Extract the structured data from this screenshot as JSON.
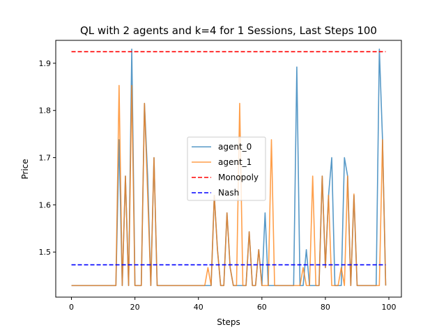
{
  "chart_data": {
    "type": "line",
    "title": "QL with 2 agents and k=4 for 1 Sessions, Last Steps 100",
    "xlabel": "Steps",
    "ylabel": "Price",
    "xlim": [
      -4.95,
      103.95
    ],
    "ylim": [
      1.4045,
      1.9485
    ],
    "xticks": [
      0,
      20,
      40,
      60,
      80,
      100
    ],
    "yticks": [
      1.5,
      1.6,
      1.7,
      1.8,
      1.9
    ],
    "ytick_labels": [
      "1.5",
      "1.6",
      "1.7",
      "1.8",
      "1.9"
    ],
    "grid": false,
    "legend_position": "center",
    "series": [
      {
        "name": "agent_0",
        "color": "#1f77b4",
        "style": "solid",
        "x": [
          0,
          1,
          2,
          3,
          4,
          5,
          6,
          7,
          8,
          9,
          10,
          11,
          12,
          13,
          14,
          15,
          16,
          17,
          18,
          19,
          20,
          21,
          22,
          23,
          24,
          25,
          26,
          27,
          28,
          29,
          30,
          31,
          32,
          33,
          34,
          35,
          36,
          37,
          38,
          39,
          40,
          41,
          42,
          43,
          44,
          45,
          46,
          47,
          48,
          49,
          50,
          51,
          52,
          53,
          54,
          55,
          56,
          57,
          58,
          59,
          60,
          61,
          62,
          63,
          64,
          65,
          66,
          67,
          68,
          69,
          70,
          71,
          72,
          73,
          74,
          75,
          76,
          77,
          78,
          79,
          80,
          81,
          82,
          83,
          84,
          85,
          86,
          87,
          88,
          89,
          90,
          91,
          92,
          93,
          94,
          95,
          96,
          97,
          98,
          99
        ],
        "values": [
          1.429,
          1.429,
          1.429,
          1.429,
          1.429,
          1.429,
          1.429,
          1.429,
          1.429,
          1.429,
          1.429,
          1.429,
          1.429,
          1.429,
          1.429,
          1.738,
          1.429,
          1.661,
          1.429,
          1.93,
          1.429,
          1.429,
          1.429,
          1.815,
          1.661,
          1.429,
          1.7,
          1.429,
          1.429,
          1.429,
          1.429,
          1.429,
          1.429,
          1.429,
          1.429,
          1.429,
          1.429,
          1.429,
          1.429,
          1.429,
          1.429,
          1.429,
          1.429,
          1.429,
          1.429,
          1.62,
          1.505,
          1.429,
          1.429,
          1.583,
          1.467,
          1.429,
          1.429,
          1.429,
          1.429,
          1.429,
          1.543,
          1.429,
          1.429,
          1.505,
          1.429,
          1.583,
          1.429,
          1.429,
          1.429,
          1.429,
          1.429,
          1.429,
          1.429,
          1.429,
          1.429,
          1.892,
          1.429,
          1.429,
          1.505,
          1.429,
          1.429,
          1.429,
          1.429,
          1.661,
          1.467,
          1.62,
          1.7,
          1.429,
          1.429,
          1.429,
          1.7,
          1.661,
          1.429,
          1.62,
          1.429,
          1.429,
          1.429,
          1.429,
          1.429,
          1.429,
          1.429,
          1.93,
          1.738,
          1.429
        ]
      },
      {
        "name": "agent_1",
        "color": "#ff7f0e",
        "style": "solid",
        "x": [
          0,
          1,
          2,
          3,
          4,
          5,
          6,
          7,
          8,
          9,
          10,
          11,
          12,
          13,
          14,
          15,
          16,
          17,
          18,
          19,
          20,
          21,
          22,
          23,
          24,
          25,
          26,
          27,
          28,
          29,
          30,
          31,
          32,
          33,
          34,
          35,
          36,
          37,
          38,
          39,
          40,
          41,
          42,
          43,
          44,
          45,
          46,
          47,
          48,
          49,
          50,
          51,
          52,
          53,
          54,
          55,
          56,
          57,
          58,
          59,
          60,
          61,
          62,
          63,
          64,
          65,
          66,
          67,
          68,
          69,
          70,
          71,
          72,
          73,
          74,
          75,
          76,
          77,
          78,
          79,
          80,
          81,
          82,
          83,
          84,
          85,
          86,
          87,
          88,
          89,
          90,
          91,
          92,
          93,
          94,
          95,
          96,
          97,
          98,
          99
        ],
        "values": [
          1.429,
          1.429,
          1.429,
          1.429,
          1.429,
          1.429,
          1.429,
          1.429,
          1.429,
          1.429,
          1.429,
          1.429,
          1.429,
          1.429,
          1.429,
          1.853,
          1.429,
          1.661,
          1.429,
          1.853,
          1.429,
          1.429,
          1.429,
          1.815,
          1.623,
          1.429,
          1.7,
          1.429,
          1.429,
          1.429,
          1.429,
          1.429,
          1.429,
          1.429,
          1.429,
          1.429,
          1.429,
          1.429,
          1.429,
          1.429,
          1.429,
          1.429,
          1.429,
          1.467,
          1.429,
          1.62,
          1.505,
          1.429,
          1.429,
          1.583,
          1.467,
          1.429,
          1.429,
          1.815,
          1.429,
          1.429,
          1.543,
          1.429,
          1.429,
          1.505,
          1.429,
          1.429,
          1.429,
          1.738,
          1.429,
          1.429,
          1.429,
          1.429,
          1.429,
          1.429,
          1.429,
          1.429,
          1.429,
          1.467,
          1.429,
          1.429,
          1.661,
          1.429,
          1.429,
          1.661,
          1.467,
          1.62,
          1.429,
          1.429,
          1.429,
          1.467,
          1.429,
          1.661,
          1.429,
          1.623,
          1.429,
          1.429,
          1.429,
          1.429,
          1.429,
          1.429,
          1.429,
          1.429,
          1.738,
          1.429
        ]
      },
      {
        "name": "Monopoly",
        "color": "#ff0000",
        "style": "dashed",
        "x": [
          0,
          99
        ],
        "values": [
          1.9245,
          1.9245
        ]
      },
      {
        "name": "Nash",
        "color": "#0000ff",
        "style": "dashed",
        "x": [
          0,
          99
        ],
        "values": [
          1.4729,
          1.4729
        ]
      }
    ]
  }
}
